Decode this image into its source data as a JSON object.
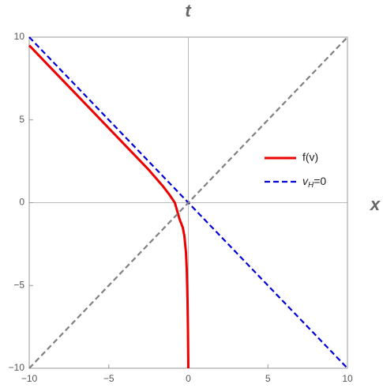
{
  "chart_data": {
    "type": "line",
    "title": "t",
    "x_label": "x",
    "xlim": [
      -10,
      10
    ],
    "ylim": [
      -10,
      10
    ],
    "xticks": [
      {
        "value": -10,
        "label": "−10"
      },
      {
        "value": -5,
        "label": "−5"
      },
      0,
      5,
      10
    ],
    "yticks": [
      {
        "value": -10,
        "label": "−10"
      },
      {
        "value": -5,
        "label": "−5"
      },
      0,
      5,
      10
    ],
    "axes_origin": true,
    "legend": "right",
    "series": [
      {
        "name": "f(v)",
        "color": "#ee0000",
        "dash": false,
        "x": [
          0,
          -0.02,
          -0.05,
          -0.1,
          -0.15,
          -0.25,
          -0.35,
          -0.55,
          -0.7,
          -0.85,
          -1.2,
          -1.6,
          -2.5,
          -3.5,
          -4.5,
          -5.5,
          -6.5,
          -7.5,
          -8.5,
          -10
        ],
        "y": [
          -10,
          -8,
          -6,
          -4,
          -3,
          -2,
          -1.5,
          -1,
          -0.5,
          0,
          0.5,
          1,
          2,
          3,
          4,
          5,
          6,
          7,
          8,
          9.5
        ]
      },
      {
        "name": "vH=0",
        "color": "#0000dd",
        "dash": true,
        "x": [
          -10,
          10
        ],
        "y": [
          10,
          -10
        ]
      },
      {
        "color": "#808080",
        "dash": true,
        "x": [
          -10,
          10
        ],
        "y": [
          -10,
          10
        ]
      }
    ]
  }
}
